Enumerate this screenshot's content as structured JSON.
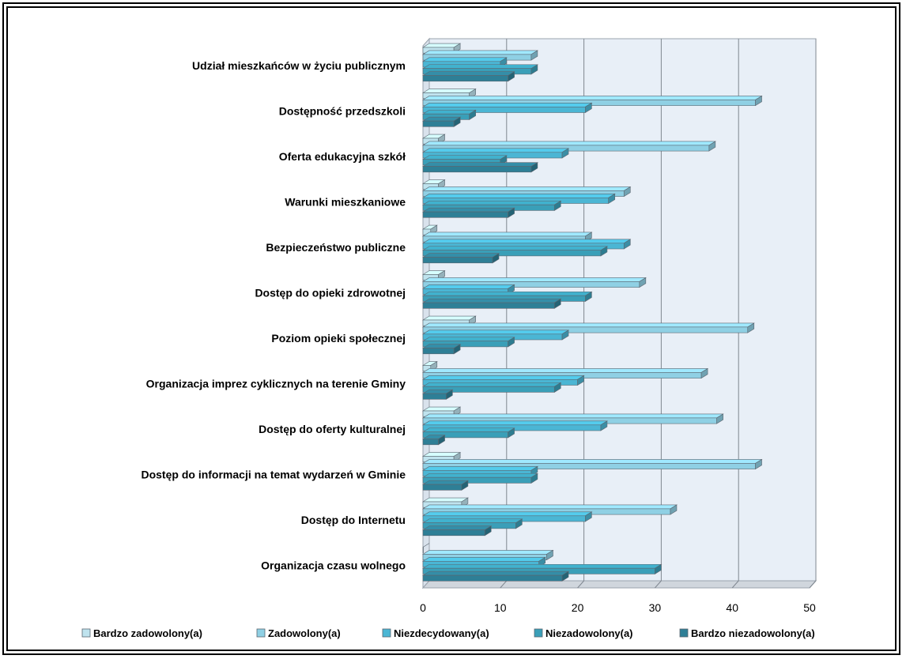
{
  "chart_data": {
    "type": "bar",
    "orientation": "horizontal",
    "categories": [
      "Udział mieszkańców w życiu publicznym",
      "Dostępność przedszkoli",
      "Oferta edukacyjna szkół",
      "Warunki mieszkaniowe",
      "Bezpieczeństwo publiczne",
      "Dostęp do opieki zdrowotnej",
      "Poziom opieki społecznej",
      "Organizacja imprez cyklicznych na terenie Gminy",
      "Dostęp do oferty kulturalnej",
      "Dostęp do informacji na temat wydarzeń w Gminie",
      "Dostęp do Internetu",
      "Organizacja czasu wolnego"
    ],
    "series": [
      {
        "name": "Bardzo zadowolony(a)",
        "values": [
          4,
          6,
          2,
          2,
          1,
          2,
          6,
          1,
          4,
          4,
          5,
          0
        ],
        "color": "#bfe3ee"
      },
      {
        "name": "Zadowolony(a)",
        "values": [
          14,
          43,
          37,
          26,
          21,
          28,
          42,
          36,
          38,
          43,
          32,
          16
        ],
        "color": "#8fd0e4"
      },
      {
        "name": "Niezdecydowany(a)",
        "values": [
          10,
          21,
          18,
          24,
          26,
          11,
          18,
          20,
          23,
          14,
          21,
          15
        ],
        "color": "#4bb6d4"
      },
      {
        "name": "Niezadowolony(a)",
        "values": [
          14,
          6,
          10,
          17,
          23,
          21,
          11,
          17,
          11,
          14,
          12,
          30
        ],
        "color": "#3a9fb8"
      },
      {
        "name": "Bardzo niezadowolony(a)",
        "values": [
          11,
          4,
          14,
          11,
          9,
          17,
          4,
          3,
          2,
          5,
          8,
          18
        ],
        "color": "#2e7f96"
      }
    ],
    "xlim": [
      0,
      50
    ],
    "xticks": [
      "0",
      "10",
      "20",
      "30",
      "40",
      "50"
    ],
    "grid": true,
    "legend": "bottom",
    "style": "3d"
  }
}
